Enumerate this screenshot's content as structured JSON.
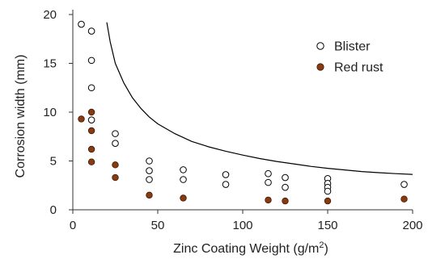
{
  "chart_data": {
    "type": "scatter",
    "title": "",
    "xlabel": "Zinc Coating Weight (g/m",
    "xlabel_sup": "2",
    "xlabel_suffix": ")",
    "ylabel": "Corrosion width (mm)",
    "xlim": [
      0,
      200
    ],
    "ylim": [
      0,
      20
    ],
    "x_ticks": [
      0,
      50,
      100,
      150,
      200
    ],
    "y_ticks": [
      0,
      5,
      10,
      15,
      20
    ],
    "grid": false,
    "legend_position": "top-right",
    "series": [
      {
        "name": "Blister",
        "marker": "open-circle",
        "color": "#000000",
        "points": [
          [
            5,
            19.0
          ],
          [
            11,
            18.3
          ],
          [
            11,
            15.3
          ],
          [
            11,
            12.5
          ],
          [
            11,
            9.2
          ],
          [
            25,
            7.8
          ],
          [
            25,
            6.8
          ],
          [
            45,
            5.0
          ],
          [
            45,
            4.0
          ],
          [
            45,
            3.1
          ],
          [
            65,
            4.1
          ],
          [
            65,
            3.1
          ],
          [
            90,
            3.6
          ],
          [
            90,
            2.6
          ],
          [
            115,
            3.7
          ],
          [
            115,
            2.8
          ],
          [
            125,
            3.3
          ],
          [
            125,
            2.3
          ],
          [
            150,
            3.2
          ],
          [
            150,
            2.7
          ],
          [
            150,
            2.3
          ],
          [
            150,
            1.9
          ],
          [
            195,
            2.6
          ]
        ]
      },
      {
        "name": "Red rust",
        "marker": "filled-circle",
        "color": "#8B3A10",
        "points": [
          [
            5,
            9.3
          ],
          [
            11,
            10.0
          ],
          [
            11,
            8.1
          ],
          [
            11,
            6.2
          ],
          [
            11,
            4.9
          ],
          [
            25,
            4.6
          ],
          [
            25,
            3.3
          ],
          [
            45,
            1.5
          ],
          [
            65,
            1.2
          ],
          [
            115,
            1.0
          ],
          [
            125,
            0.9
          ],
          [
            150,
            0.9
          ],
          [
            195,
            1.1
          ]
        ]
      }
    ],
    "curve": {
      "color": "#000000",
      "points": [
        [
          20,
          19.2
        ],
        [
          22,
          17.2
        ],
        [
          25,
          15.0
        ],
        [
          30,
          13.0
        ],
        [
          35,
          11.5
        ],
        [
          40,
          10.4
        ],
        [
          45,
          9.5
        ],
        [
          50,
          8.8
        ],
        [
          60,
          7.8
        ],
        [
          70,
          7.0
        ],
        [
          80,
          6.45
        ],
        [
          90,
          6.0
        ],
        [
          100,
          5.6
        ],
        [
          110,
          5.25
        ],
        [
          120,
          4.95
        ],
        [
          130,
          4.7
        ],
        [
          140,
          4.45
        ],
        [
          150,
          4.25
        ],
        [
          160,
          4.08
        ],
        [
          170,
          3.92
        ],
        [
          180,
          3.8
        ],
        [
          190,
          3.7
        ],
        [
          200,
          3.62
        ]
      ]
    }
  }
}
